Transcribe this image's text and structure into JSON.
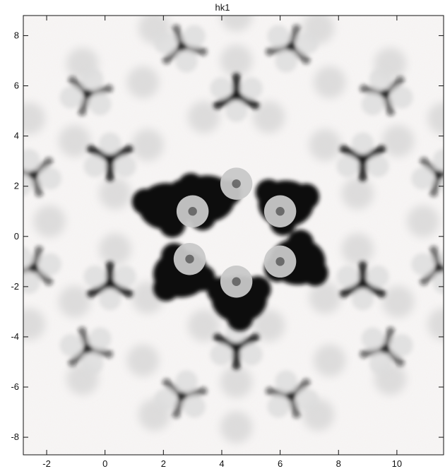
{
  "chart_data": {
    "type": "heatmap",
    "title": "hk1",
    "xlabel": "",
    "ylabel": "",
    "xlim": [
      -2.8,
      11.6
    ],
    "ylim": [
      -8.7,
      8.8
    ],
    "xticks": [
      -2,
      0,
      2,
      4,
      6,
      8,
      10
    ],
    "yticks": [
      8,
      6,
      4,
      2,
      0,
      -2,
      -4,
      -6,
      -8
    ],
    "x_tick_labels": [
      "-2",
      "0",
      "2",
      "4",
      "6",
      "8",
      "10"
    ],
    "y_tick_labels": [
      "8",
      "6",
      "4",
      "2",
      "0",
      "-2",
      "-4",
      "-6",
      "-8"
    ],
    "center": [
      4.5,
      0.6
    ],
    "grid": false,
    "colormap": {
      "low": "#ffffff",
      "high": "#111111",
      "noise_tint": "#f3c9bd"
    },
    "dark_lobes": [
      {
        "center": [
          3.5,
          1.5
        ],
        "intensity": 1.0
      },
      {
        "center": [
          6.2,
          1.3
        ],
        "intensity": 1.0
      },
      {
        "center": [
          6.6,
          -1.0
        ],
        "intensity": 1.0
      },
      {
        "center": [
          4.6,
          -2.5
        ],
        "intensity": 1.0
      },
      {
        "center": [
          2.6,
          -1.5
        ],
        "intensity": 1.0
      },
      {
        "center": [
          2.1,
          1.2
        ],
        "intensity": 1.0
      }
    ],
    "bright_spots": [
      {
        "x": 3.0,
        "y": 1.0
      },
      {
        "x": 4.5,
        "y": 2.1
      },
      {
        "x": 6.0,
        "y": 1.0
      },
      {
        "x": 6.0,
        "y": -1.0
      },
      {
        "x": 4.5,
        "y": -1.8
      },
      {
        "x": 2.9,
        "y": -0.9
      }
    ],
    "faint_rings": [
      {
        "r": 4.3,
        "count": 12,
        "phase_deg": 15
      },
      {
        "r": 6.4,
        "count": 12,
        "phase_deg": 0
      },
      {
        "r": 8.2,
        "count": 18,
        "phase_deg": 10
      }
    ],
    "trefoils": [
      {
        "r": 5.0,
        "count": 6,
        "phase_deg": 30
      },
      {
        "r": 7.2,
        "count": 12,
        "phase_deg": 15
      }
    ]
  }
}
